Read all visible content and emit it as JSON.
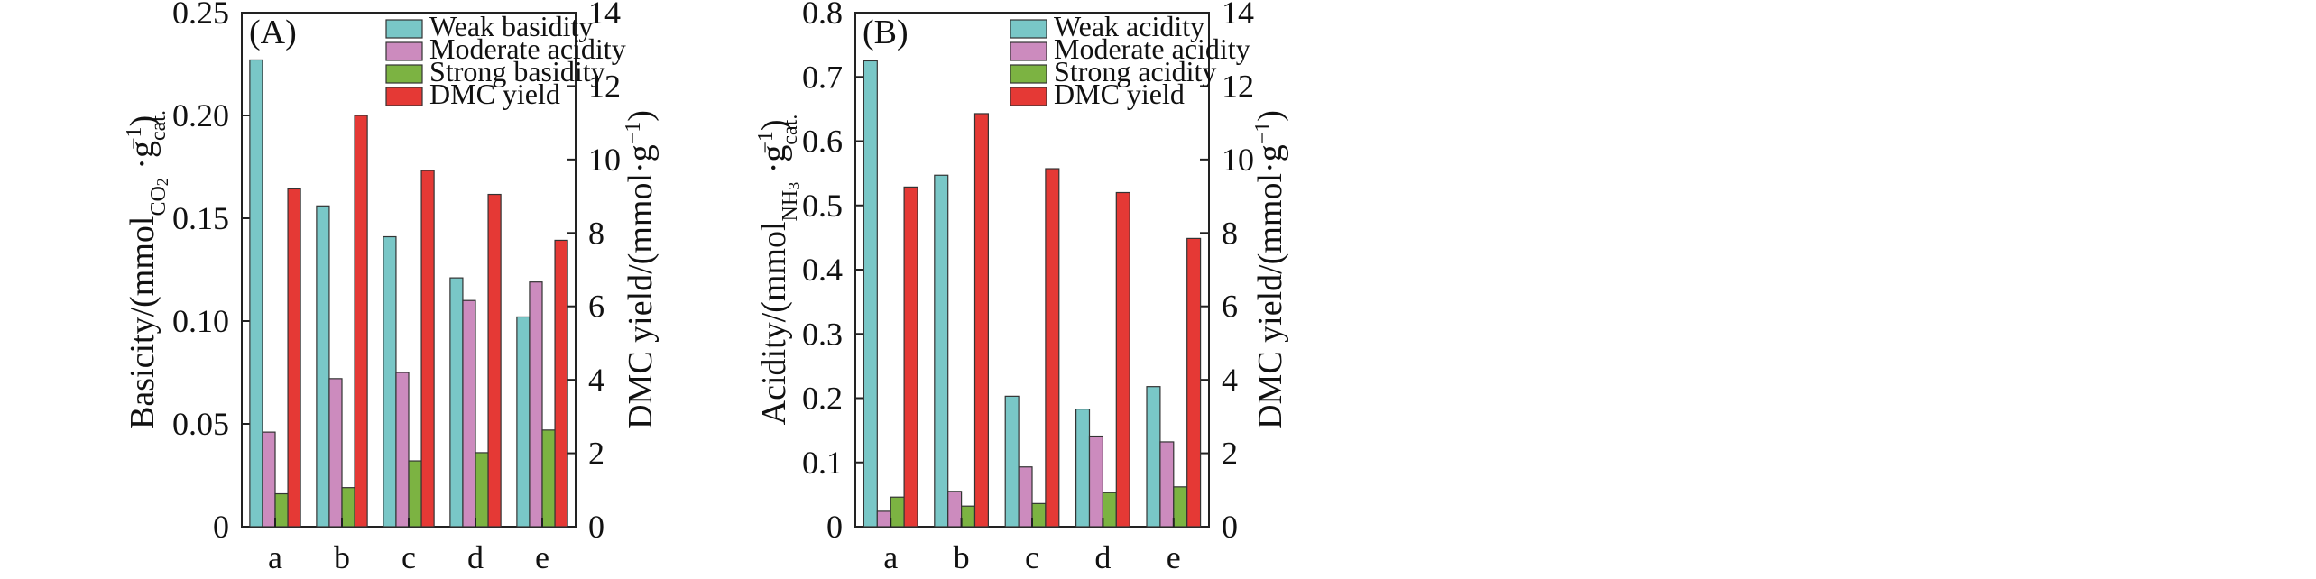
{
  "colors": {
    "weak": "#79C7C7",
    "moderate": "#CC8BBE",
    "strong": "#7CB342",
    "dmc": "#E53935",
    "axis": "#222222",
    "background": "#ffffff"
  },
  "chart_data": [
    {
      "type": "bar",
      "panel_label": "(A)",
      "categories": [
        "a",
        "b",
        "c",
        "d",
        "e"
      ],
      "series": [
        {
          "name": "Weak basidity",
          "axis": "left",
          "values": [
            0.227,
            0.156,
            0.141,
            0.121,
            0.102
          ]
        },
        {
          "name": "Moderate acidity",
          "axis": "left",
          "values": [
            0.046,
            0.072,
            0.075,
            0.11,
            0.119
          ]
        },
        {
          "name": "Strong basidity",
          "axis": "left",
          "values": [
            0.016,
            0.019,
            0.032,
            0.036,
            0.047
          ]
        },
        {
          "name": "DMC yield",
          "axis": "right",
          "values": [
            9.2,
            11.2,
            9.7,
            9.05,
            7.8
          ]
        }
      ],
      "ylabel_left": "Basicity/(mmolCO2·gcat.−1)",
      "ylabel_left_parts": {
        "a": "Basicity/(mmol",
        "sub1": "CO",
        "sub1b": "2",
        "b": " ·g",
        "sub2": "cat.",
        "sup": "−1",
        "c": ")"
      },
      "ylabel_right": "DMC yield/(mmol·g−1)",
      "ylabel_right_parts": {
        "a": "DMC yield/(mmol·g",
        "sup": "−1",
        "b": ")"
      },
      "ylim_left": [
        0,
        0.25
      ],
      "yticks_left": [
        "0",
        "0.05",
        "0.10",
        "0.15",
        "0.20",
        "0.25"
      ],
      "ylim_right": [
        0,
        14
      ],
      "yticks_right": [
        "0",
        "2",
        "4",
        "6",
        "8",
        "10",
        "12",
        "14"
      ],
      "legend_position": "top-right",
      "grid": false
    },
    {
      "type": "bar",
      "panel_label": "(B)",
      "categories": [
        "a",
        "b",
        "c",
        "d",
        "e"
      ],
      "series": [
        {
          "name": "Weak acidity",
          "axis": "left",
          "values": [
            0.725,
            0.547,
            0.203,
            0.183,
            0.218
          ]
        },
        {
          "name": "Moderate acidity",
          "axis": "left",
          "values": [
            0.024,
            0.055,
            0.093,
            0.141,
            0.132
          ]
        },
        {
          "name": "Strong acidity",
          "axis": "left",
          "values": [
            0.046,
            0.032,
            0.036,
            0.053,
            0.062
          ]
        },
        {
          "name": "DMC yield",
          "axis": "right",
          "values": [
            9.25,
            11.25,
            9.75,
            9.1,
            7.85
          ]
        }
      ],
      "ylabel_left": "Acidity/(mmolNH3·gcat.−1)",
      "ylabel_left_parts": {
        "a": "Acidity/(mmol",
        "sub1": "NH",
        "sub1b": "3",
        "b": " ·g",
        "sub2": "cat.",
        "sup": "−1",
        "c": ")"
      },
      "ylabel_right": "DMC yield/(mmol·g−1)",
      "ylabel_right_parts": {
        "a": "DMC yield/(mmol·g",
        "sup": "−1",
        "b": ")"
      },
      "ylim_left": [
        0,
        0.8
      ],
      "yticks_left": [
        "0",
        "0.1",
        "0.2",
        "0.3",
        "0.4",
        "0.5",
        "0.6",
        "0.7",
        "0.8"
      ],
      "ylim_right": [
        0,
        14
      ],
      "yticks_right": [
        "0",
        "2",
        "4",
        "6",
        "8",
        "10",
        "12",
        "14"
      ],
      "legend_position": "top-right",
      "grid": false
    }
  ]
}
